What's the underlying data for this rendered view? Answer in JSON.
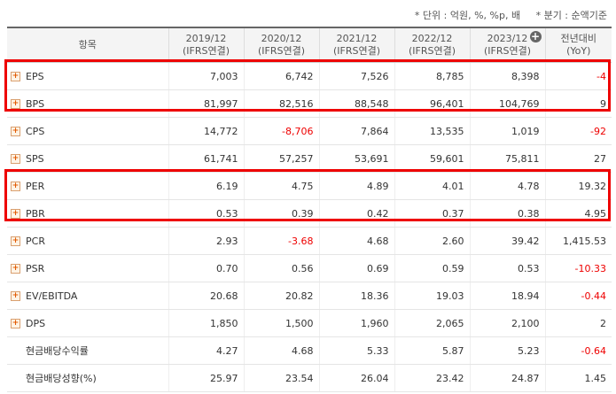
{
  "notes": {
    "unit": "* 단위 : 억원, %, %p, 배",
    "period": "* 분기 : 순액기준"
  },
  "header": {
    "item": "항목",
    "years": [
      "2019/12",
      "2020/12",
      "2021/12",
      "2022/12",
      "2023/12"
    ],
    "sub": "(IFRS연결)",
    "yoy1": "전년대비",
    "yoy2": "(YoY)"
  },
  "rows": [
    {
      "name": "EPS",
      "expand": true,
      "v": [
        "7,003",
        "6,742",
        "7,526",
        "8,785",
        "8,398"
      ],
      "yoy": "-4",
      "neg": [
        false,
        false,
        false,
        false,
        false,
        true
      ]
    },
    {
      "name": "BPS",
      "expand": true,
      "v": [
        "81,997",
        "82,516",
        "88,548",
        "96,401",
        "104,769"
      ],
      "yoy": "9",
      "neg": [
        false,
        false,
        false,
        false,
        false,
        false
      ]
    },
    {
      "name": "CPS",
      "expand": true,
      "v": [
        "14,772",
        "-8,706",
        "7,864",
        "13,535",
        "1,019"
      ],
      "yoy": "-92",
      "neg": [
        false,
        true,
        false,
        false,
        false,
        true
      ]
    },
    {
      "name": "SPS",
      "expand": true,
      "v": [
        "61,741",
        "57,257",
        "53,691",
        "59,601",
        "75,811"
      ],
      "yoy": "27",
      "neg": [
        false,
        false,
        false,
        false,
        false,
        false
      ]
    },
    {
      "name": "PER",
      "expand": true,
      "v": [
        "6.19",
        "4.75",
        "4.89",
        "4.01",
        "4.78"
      ],
      "yoy": "19.32",
      "neg": [
        false,
        false,
        false,
        false,
        false,
        false
      ]
    },
    {
      "name": "PBR",
      "expand": true,
      "v": [
        "0.53",
        "0.39",
        "0.42",
        "0.37",
        "0.38"
      ],
      "yoy": "4.95",
      "neg": [
        false,
        false,
        false,
        false,
        false,
        false
      ]
    },
    {
      "name": "PCR",
      "expand": true,
      "v": [
        "2.93",
        "-3.68",
        "4.68",
        "2.60",
        "39.42"
      ],
      "yoy": "1,415.53",
      "neg": [
        false,
        true,
        false,
        false,
        false,
        false
      ]
    },
    {
      "name": "PSR",
      "expand": true,
      "v": [
        "0.70",
        "0.56",
        "0.69",
        "0.59",
        "0.53"
      ],
      "yoy": "-10.33",
      "neg": [
        false,
        false,
        false,
        false,
        false,
        true
      ]
    },
    {
      "name": "EV/EBITDA",
      "expand": true,
      "v": [
        "20.68",
        "20.82",
        "18.36",
        "19.03",
        "18.94"
      ],
      "yoy": "-0.44",
      "neg": [
        false,
        false,
        false,
        false,
        false,
        true
      ]
    },
    {
      "name": "DPS",
      "expand": true,
      "v": [
        "1,850",
        "1,500",
        "1,960",
        "2,065",
        "2,100"
      ],
      "yoy": "2",
      "neg": [
        false,
        false,
        false,
        false,
        false,
        false
      ]
    },
    {
      "name": "현금배당수익률",
      "expand": false,
      "v": [
        "4.27",
        "4.68",
        "5.33",
        "5.87",
        "5.23"
      ],
      "yoy": "-0.64",
      "neg": [
        false,
        false,
        false,
        false,
        false,
        true
      ]
    },
    {
      "name": "현금배당성향(%)",
      "expand": false,
      "v": [
        "25.97",
        "23.54",
        "26.04",
        "23.42",
        "24.87"
      ],
      "yoy": "1.45",
      "neg": [
        false,
        false,
        false,
        false,
        false,
        false
      ]
    }
  ],
  "colors": {
    "highlight": "#e00000",
    "negative": "#e00000",
    "header_bg": "#f4f4f4"
  }
}
